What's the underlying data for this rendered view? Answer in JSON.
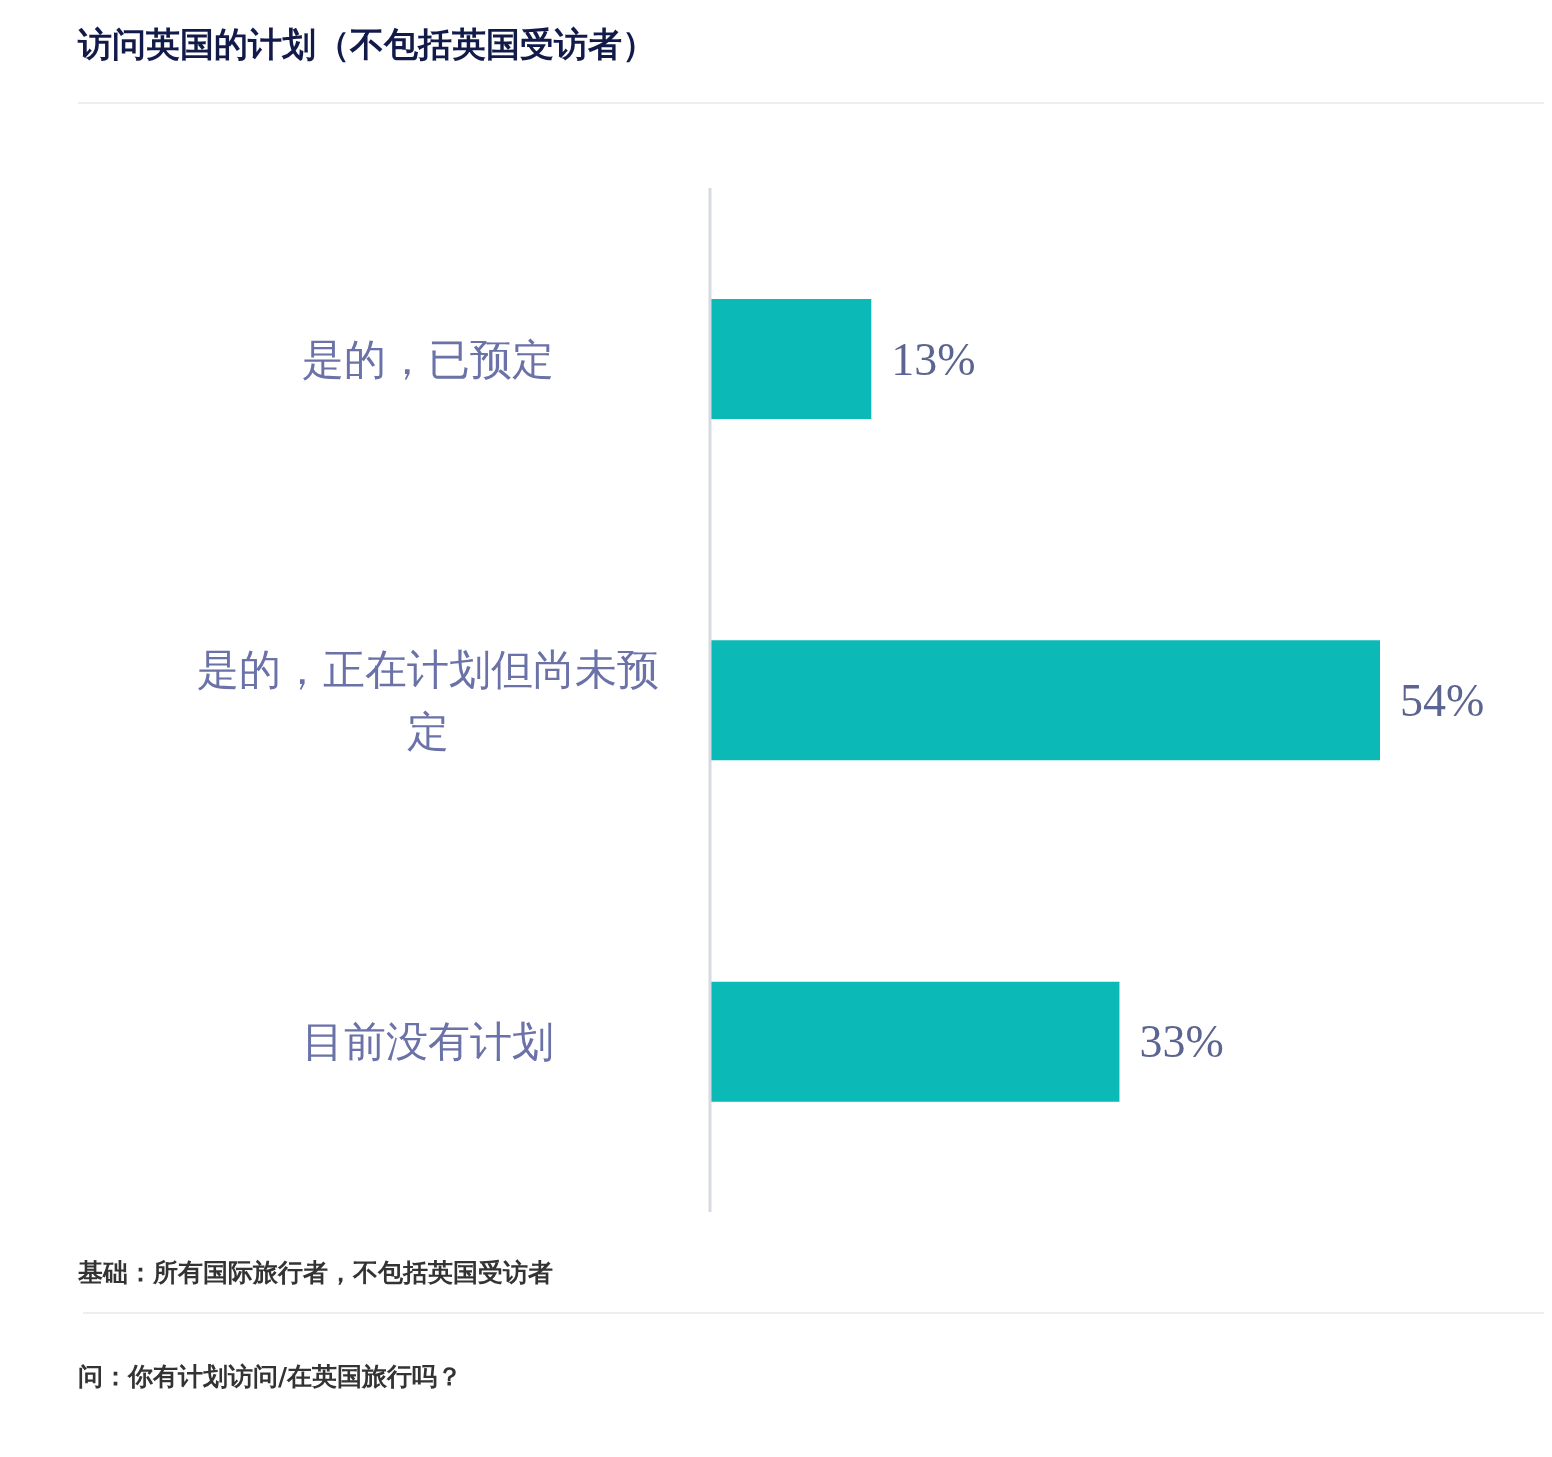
{
  "chart_data": {
    "type": "bar",
    "orientation": "horizontal",
    "title": "访问英国的计划（不包括英国受访者）",
    "categories": [
      "是的，已预定",
      "是的，正在计划但尚未预定",
      "目前没有计划"
    ],
    "values": [
      13,
      54,
      33
    ],
    "value_labels": [
      "13%",
      "54%",
      "33%"
    ],
    "color": "#0bbab6",
    "grid": false,
    "legend": false,
    "annotations": [
      "基础：所有国际旅行者，不包括英国受访者",
      "问：你有计划访问/在英国旅行吗？"
    ]
  }
}
